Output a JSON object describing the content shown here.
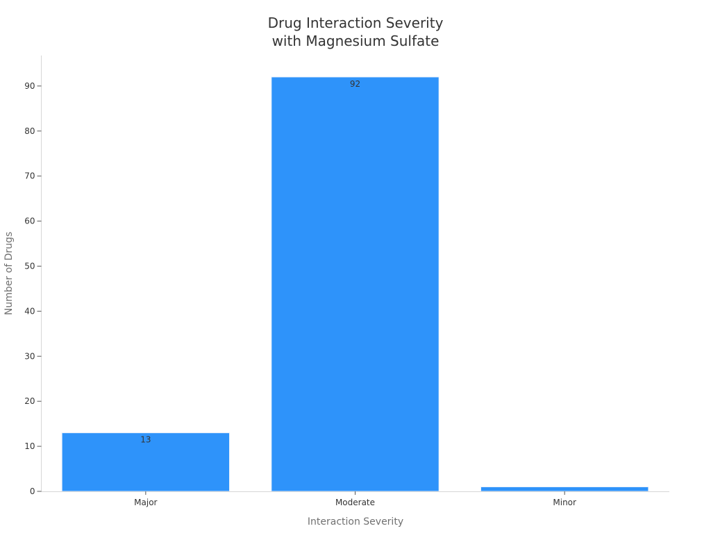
{
  "chart_data": {
    "type": "bar",
    "title_lines": [
      "Drug Interaction Severity",
      "with Magnesium Sulfate"
    ],
    "xlabel": "Interaction Severity",
    "ylabel": "Number of Drugs",
    "categories": [
      "Major",
      "Moderate",
      "Minor"
    ],
    "values": [
      13,
      92,
      1
    ],
    "data_labels": [
      "13",
      "92",
      ""
    ],
    "ylim": [
      0,
      96
    ],
    "yticks": [
      0,
      10,
      20,
      30,
      40,
      50,
      60,
      70,
      80,
      90
    ],
    "grid": false,
    "legend": "none",
    "bar_color": "#2e93fa",
    "bar_edge_color": "#e8f1fc"
  }
}
